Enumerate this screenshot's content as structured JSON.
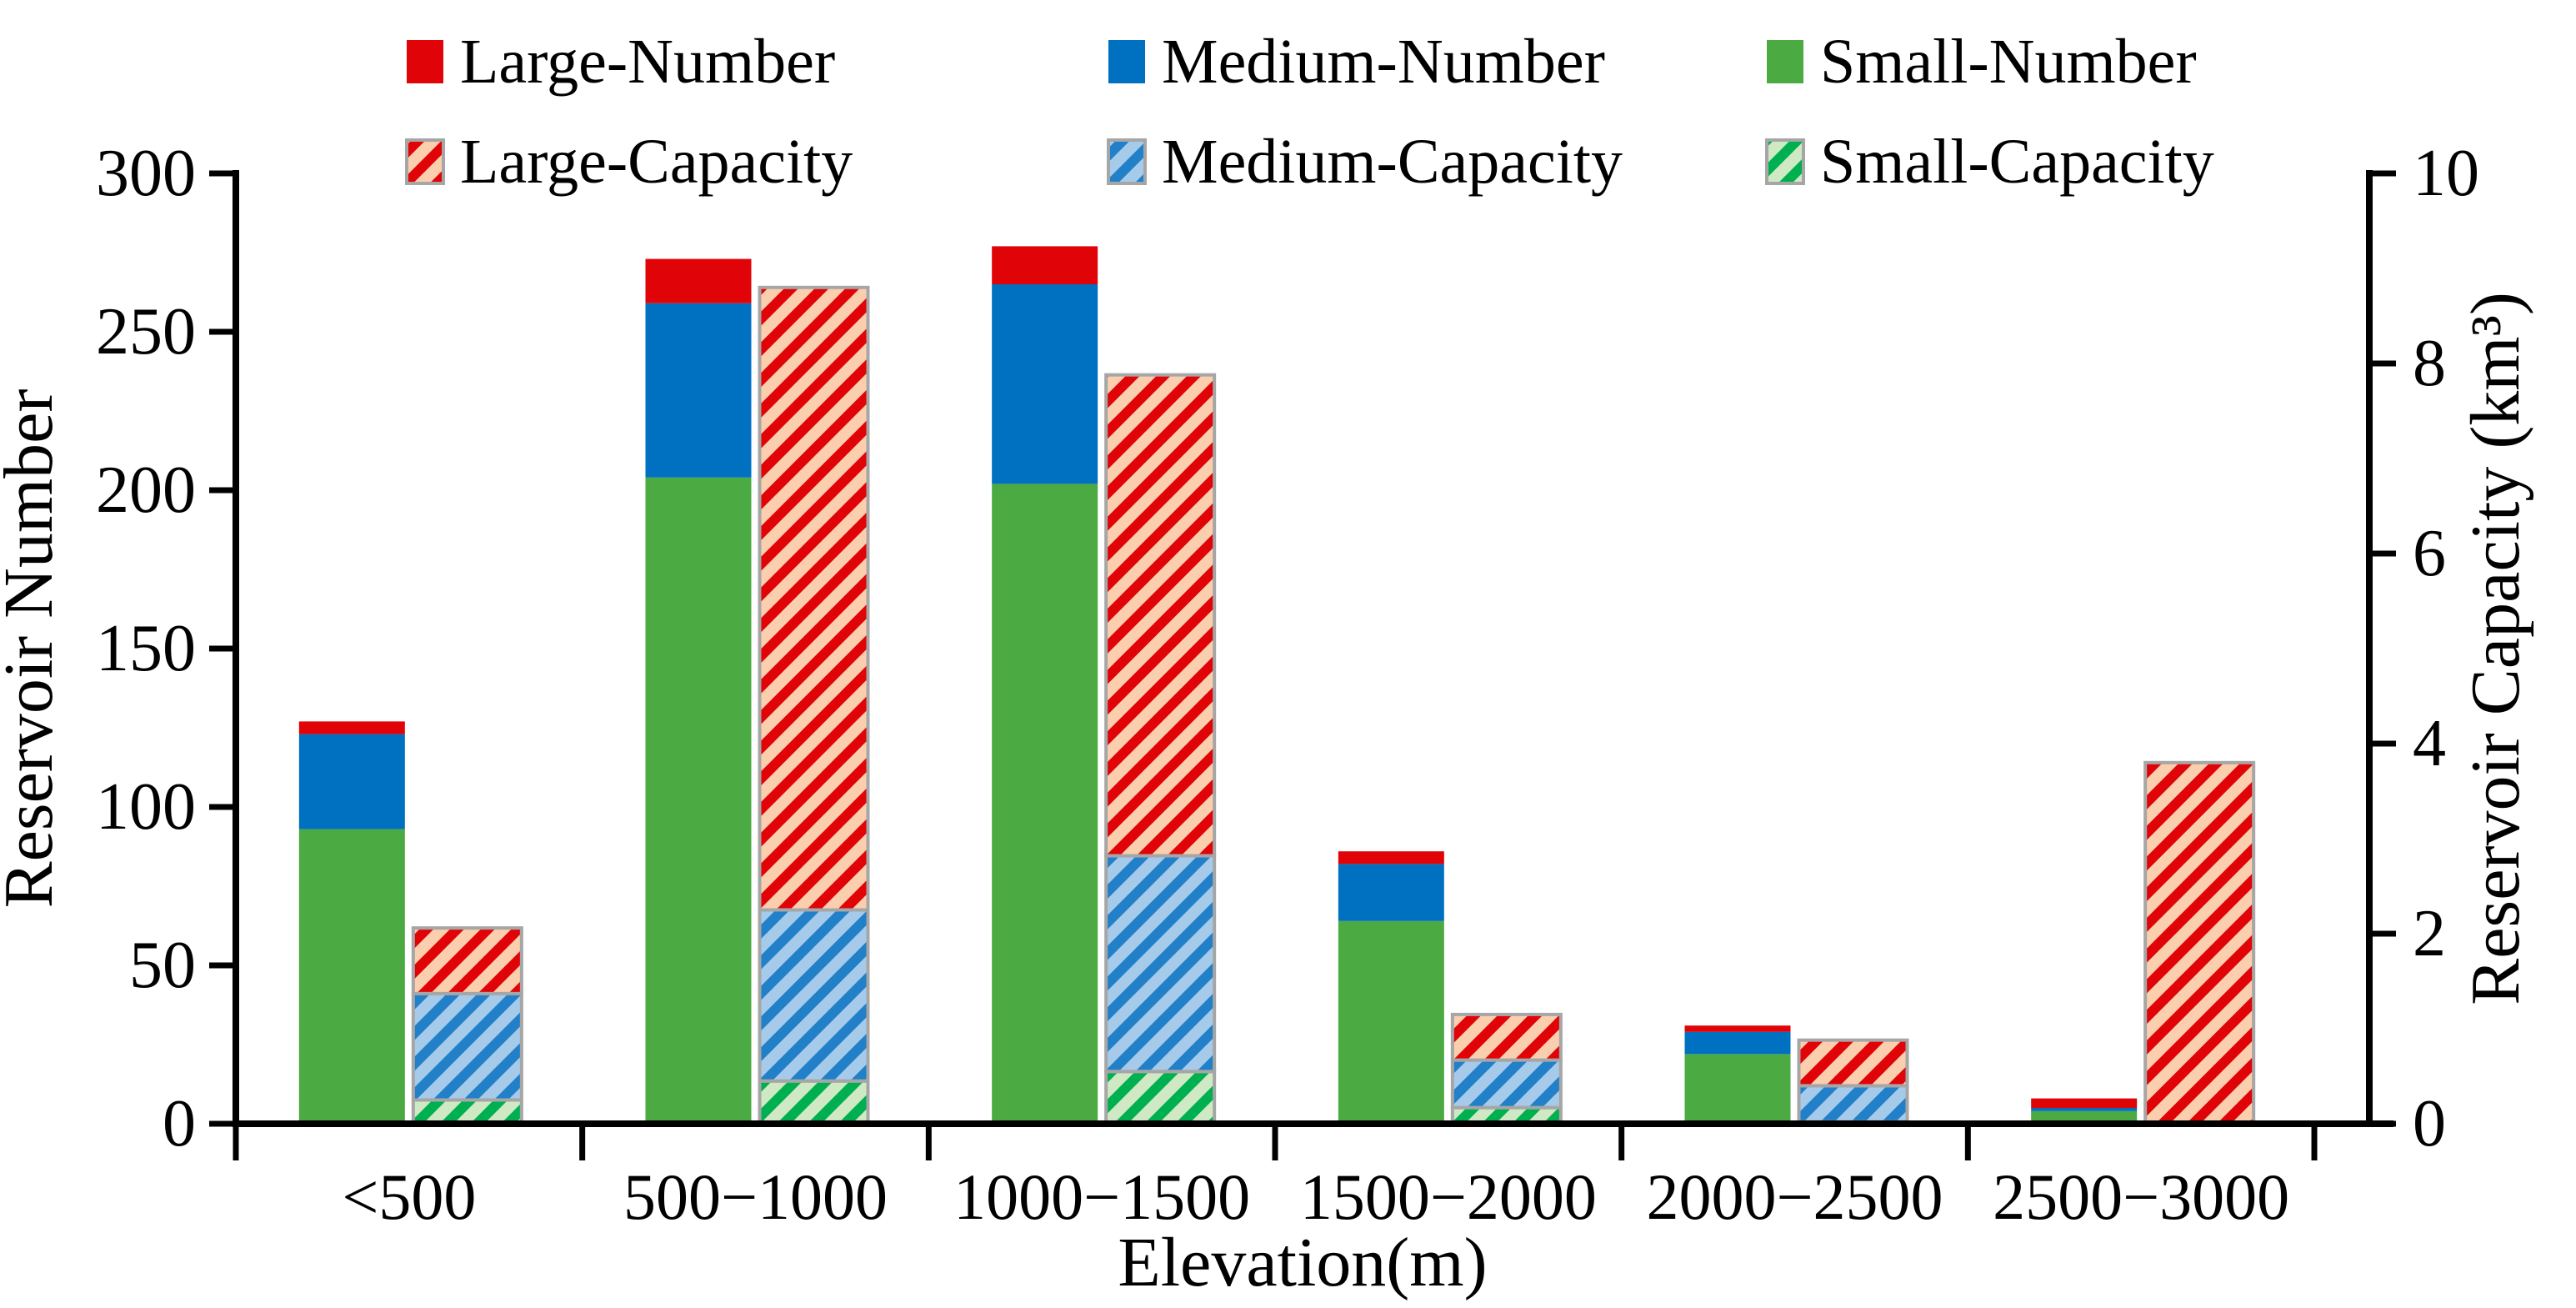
{
  "chart_data": {
    "type": "bar",
    "title": "",
    "categories": [
      "<500",
      "500−1000",
      "1000−1500",
      "1500−2000",
      "2000−2500",
      "2500−3000"
    ],
    "xlabel": "Elevation(m)",
    "left_axis": {
      "label": "Reservoir Number",
      "range": [
        0,
        300
      ],
      "ticks": [
        0,
        50,
        100,
        150,
        200,
        250,
        300
      ]
    },
    "right_axis": {
      "label": "Reservoir Capacity (km³)",
      "range": [
        0,
        10
      ],
      "ticks": [
        0,
        2,
        4,
        6,
        8,
        10
      ]
    },
    "grid": false,
    "legend_position": "top",
    "series": [
      {
        "name": "Small-Number",
        "axis": "left",
        "style": "solid",
        "color": "#4caa43",
        "values": [
          93,
          204,
          202,
          64,
          22,
          4
        ]
      },
      {
        "name": "Medium-Number",
        "axis": "left",
        "style": "solid",
        "color": "#0070c0",
        "values": [
          30,
          55,
          63,
          18,
          7,
          1
        ]
      },
      {
        "name": "Large-Number",
        "axis": "left",
        "style": "solid",
        "color": "#e00408",
        "values": [
          4,
          14,
          12,
          4,
          2,
          3
        ]
      },
      {
        "name": "Small-Capacity",
        "axis": "right",
        "style": "hatch",
        "color": "#00b050",
        "bg": "#cfe9c4",
        "values": [
          0.25,
          0.45,
          0.55,
          0.17,
          0.02,
          0
        ]
      },
      {
        "name": "Medium-Capacity",
        "axis": "right",
        "style": "hatch",
        "color": "#2280c8",
        "bg": "#a6cbea",
        "values": [
          1.12,
          1.8,
          2.27,
          0.5,
          0.38,
          0
        ]
      },
      {
        "name": "Large-Capacity",
        "axis": "right",
        "style": "hatch",
        "color": "#e00408",
        "bg": "#fbcfae",
        "values": [
          0.69,
          6.55,
          5.06,
          0.48,
          0.48,
          3.8
        ]
      }
    ],
    "legend_rows": [
      [
        "Large-Number",
        "Medium-Number",
        "Small-Number"
      ],
      [
        "Large-Capacity",
        "Medium-Capacity",
        "Small-Capacity"
      ]
    ],
    "styles": {
      "axis_color": "#000000",
      "segment_border_color": "#a6a6a6"
    }
  }
}
